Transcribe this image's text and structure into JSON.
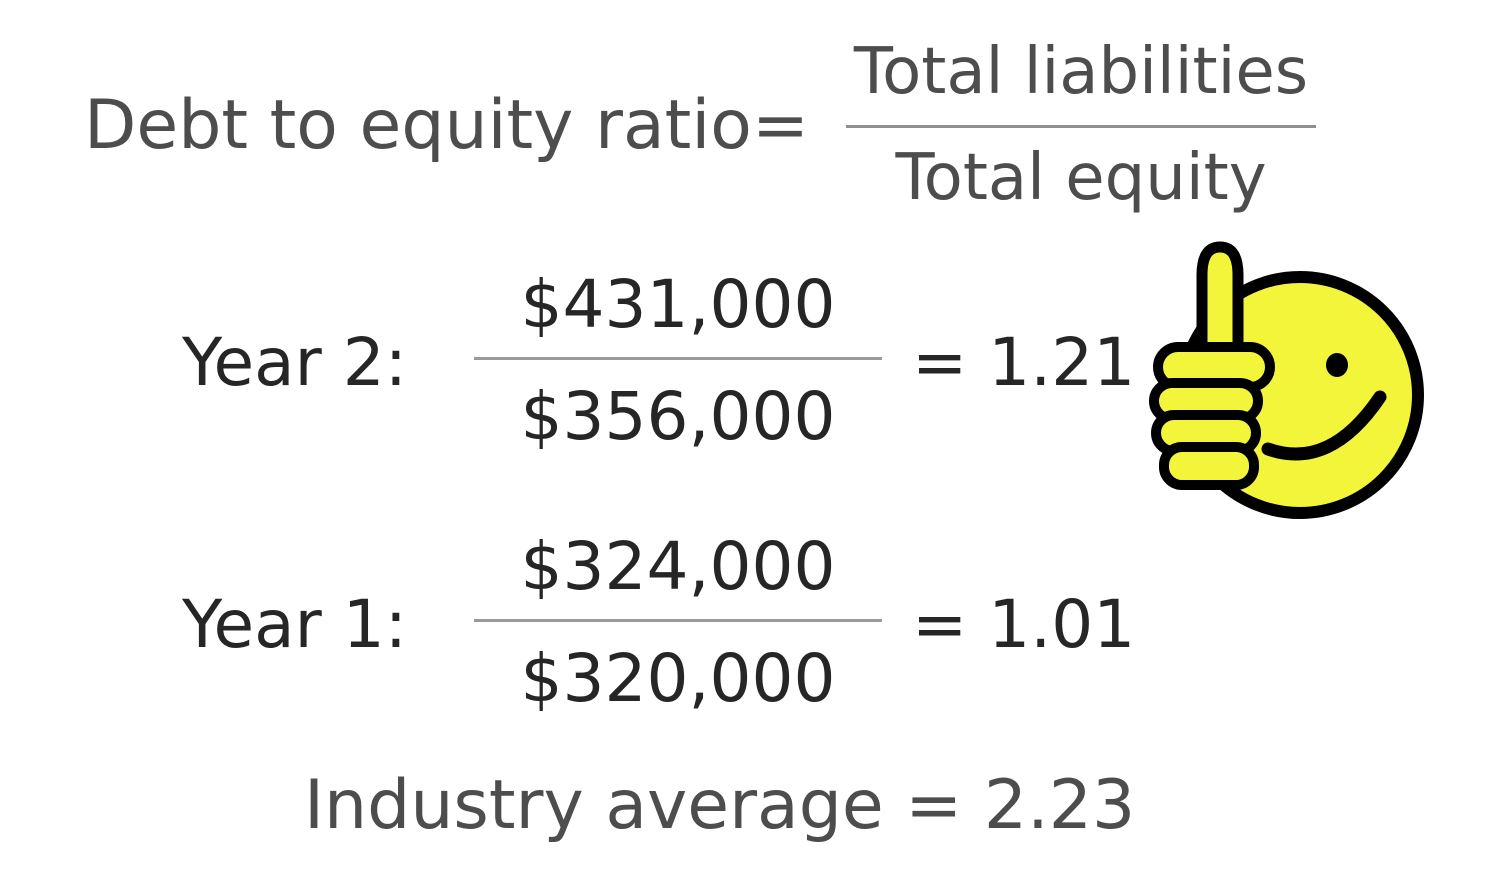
{
  "formula": {
    "label": "Debt to equity ratio",
    "equals": "=",
    "numerator": "Total liabilities",
    "denominator": "Total equity"
  },
  "year2": {
    "label": "Year 2:",
    "numerator": "$431,000",
    "denominator": "$356,000",
    "result": "= 1.21"
  },
  "year1": {
    "label": "Year 1:",
    "numerator": "$324,000",
    "denominator": "$320,000",
    "result": "= 1.01"
  },
  "industry": {
    "text": "Industry average = 2.23"
  },
  "icon": {
    "name": "thumbs-up-smiley-icon",
    "face_color": "#f3f53a",
    "outline_color": "#000000"
  }
}
